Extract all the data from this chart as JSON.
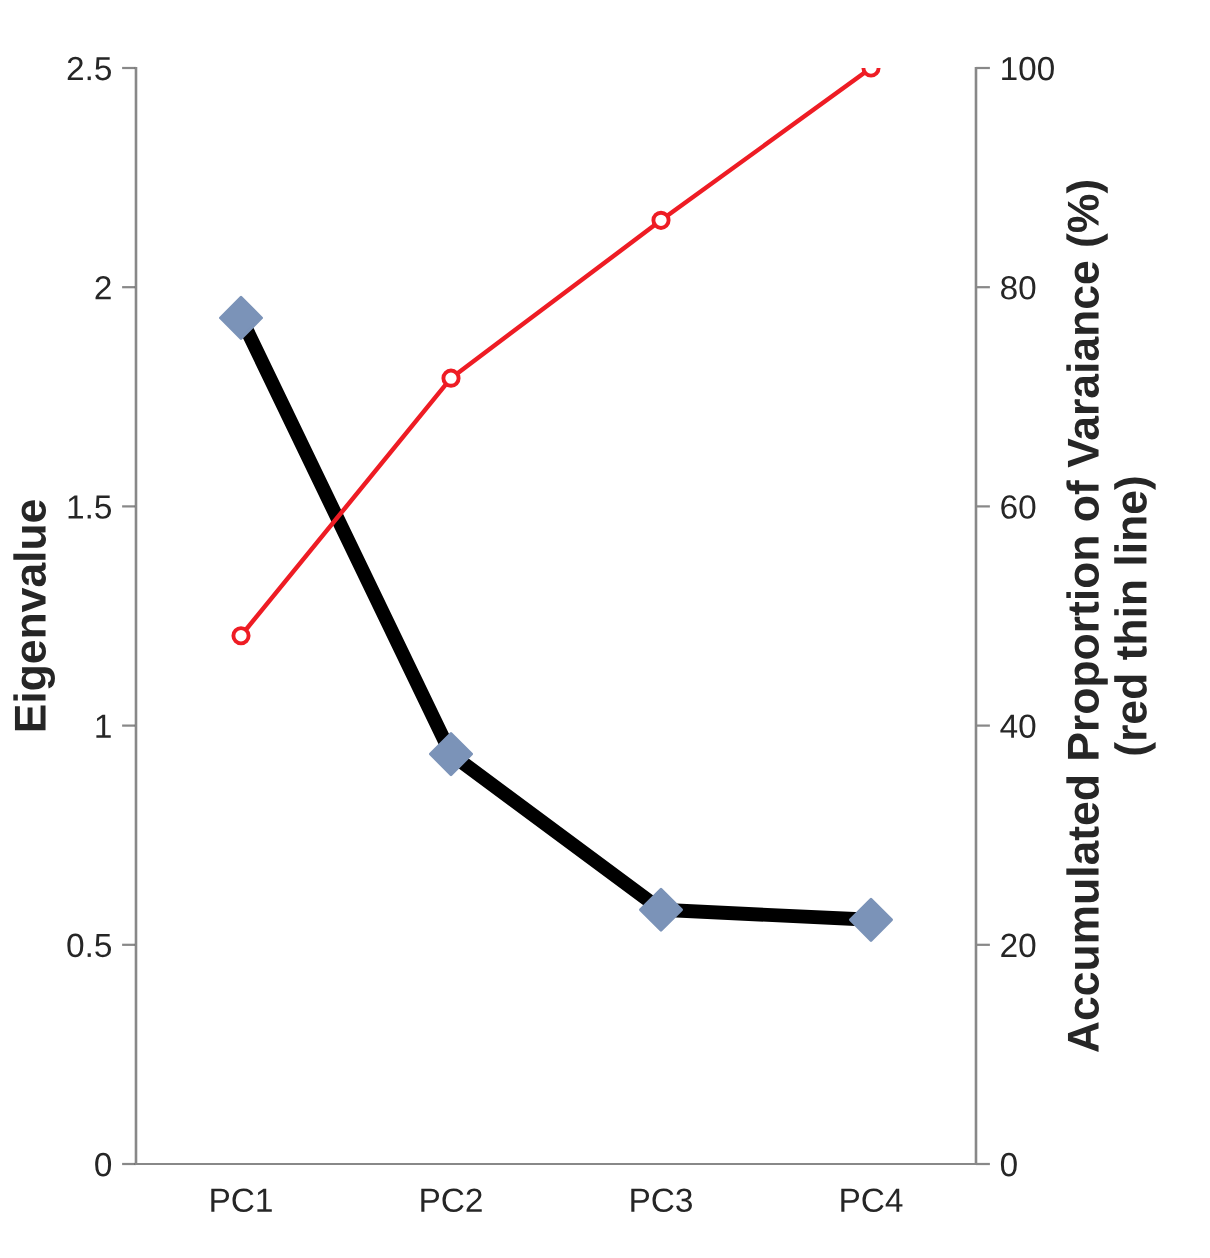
{
  "chart_data": {
    "type": "line",
    "ylabel": "Eigenvalue",
    "y2label": "Accumulated Proportion of Varaiance (%)\n(red thin line)",
    "categories": [
      "PC1",
      "PC2",
      "PC3",
      "PC4"
    ],
    "series": [
      {
        "color": "#000000",
        "colors": [
          "#7b93b8",
          "#7b93b8",
          "#7b93b8",
          "#7b93b8"
        ],
        "marker": "diamond",
        "values": [
          1.93,
          0.935,
          0.58,
          0.557
        ]
      },
      {
        "color": "#ee1c24",
        "marker": "circle",
        "axis": "y2",
        "values": [
          48.2,
          71.7,
          86.1,
          100
        ]
      }
    ],
    "ylim": [
      0,
      2.5
    ],
    "yticks": [
      0,
      0.5,
      1,
      1.5,
      2,
      2.5
    ],
    "y2lim": [
      0,
      100
    ],
    "y2ticks": [
      0,
      20,
      40,
      60,
      80,
      100
    ],
    "grid": false,
    "legend": false
  }
}
